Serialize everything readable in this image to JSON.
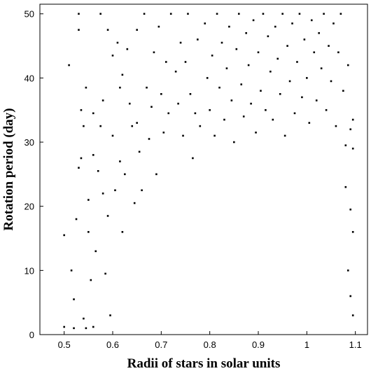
{
  "chart_data": {
    "type": "scatter",
    "xlabel": "Radii of stars in solar units",
    "ylabel": "Rotation period (day)",
    "xlim": [
      0.45,
      1.125
    ],
    "ylim": [
      0,
      51.5
    ],
    "xticks": [
      0.5,
      0.6,
      0.7,
      0.8,
      0.9,
      1,
      1.1
    ],
    "xtick_labels": [
      "0.5",
      "0.6",
      "0.7",
      "0.8",
      "0.9",
      "1",
      "1.1"
    ],
    "yticks": [
      0,
      10,
      20,
      30,
      40,
      50
    ],
    "ytick_labels": [
      "0",
      "10",
      "20",
      "30",
      "40",
      "50"
    ],
    "grid": false,
    "marker_color": "#000000",
    "series": [
      {
        "values": [
          [
            0.5,
            1.2
          ],
          [
            0.5,
            15.5
          ],
          [
            0.51,
            42.0
          ],
          [
            0.515,
            10.0
          ],
          [
            0.52,
            5.5
          ],
          [
            0.52,
            1.0
          ],
          [
            0.525,
            18.0
          ],
          [
            0.53,
            26.0
          ],
          [
            0.53,
            50.0
          ],
          [
            0.53,
            47.5
          ],
          [
            0.535,
            35.0
          ],
          [
            0.535,
            27.5
          ],
          [
            0.54,
            32.5
          ],
          [
            0.54,
            2.5
          ],
          [
            0.545,
            1.0
          ],
          [
            0.545,
            38.5
          ],
          [
            0.55,
            16.0
          ],
          [
            0.55,
            21.0
          ],
          [
            0.555,
            8.5
          ],
          [
            0.56,
            34.5
          ],
          [
            0.56,
            28.0
          ],
          [
            0.56,
            1.2
          ],
          [
            0.565,
            13.0
          ],
          [
            0.57,
            25.5
          ],
          [
            0.575,
            50.0
          ],
          [
            0.575,
            32.5
          ],
          [
            0.58,
            22.0
          ],
          [
            0.58,
            36.5
          ],
          [
            0.585,
            9.5
          ],
          [
            0.59,
            47.5
          ],
          [
            0.59,
            18.5
          ],
          [
            0.595,
            3.0
          ],
          [
            0.6,
            43.5
          ],
          [
            0.6,
            31.0
          ],
          [
            0.605,
            22.5
          ],
          [
            0.61,
            45.5
          ],
          [
            0.615,
            38.5
          ],
          [
            0.615,
            27.0
          ],
          [
            0.62,
            40.5
          ],
          [
            0.62,
            16.0
          ],
          [
            0.625,
            25.0
          ],
          [
            0.63,
            44.5
          ],
          [
            0.635,
            36.0
          ],
          [
            0.64,
            32.5
          ],
          [
            0.645,
            20.5
          ],
          [
            0.65,
            33.0
          ],
          [
            0.65,
            47.5
          ],
          [
            0.655,
            28.5
          ],
          [
            0.66,
            22.5
          ],
          [
            0.665,
            50.0
          ],
          [
            0.67,
            38.5
          ],
          [
            0.675,
            30.5
          ],
          [
            0.68,
            35.5
          ],
          [
            0.685,
            44.0
          ],
          [
            0.69,
            25.0
          ],
          [
            0.695,
            48.0
          ],
          [
            0.7,
            37.5
          ],
          [
            0.705,
            31.5
          ],
          [
            0.71,
            42.5
          ],
          [
            0.715,
            34.5
          ],
          [
            0.72,
            50.0
          ],
          [
            0.73,
            41.0
          ],
          [
            0.735,
            36.0
          ],
          [
            0.74,
            45.5
          ],
          [
            0.745,
            31.0
          ],
          [
            0.75,
            42.5
          ],
          [
            0.755,
            50.0
          ],
          [
            0.76,
            37.5
          ],
          [
            0.765,
            27.5
          ],
          [
            0.77,
            34.5
          ],
          [
            0.775,
            46.0
          ],
          [
            0.78,
            32.5
          ],
          [
            0.79,
            48.5
          ],
          [
            0.795,
            40.0
          ],
          [
            0.8,
            35.0
          ],
          [
            0.805,
            43.5
          ],
          [
            0.81,
            31.0
          ],
          [
            0.815,
            50.0
          ],
          [
            0.82,
            38.5
          ],
          [
            0.825,
            45.5
          ],
          [
            0.83,
            33.5
          ],
          [
            0.835,
            41.5
          ],
          [
            0.84,
            48.0
          ],
          [
            0.845,
            36.5
          ],
          [
            0.85,
            30.0
          ],
          [
            0.855,
            44.5
          ],
          [
            0.86,
            50.0
          ],
          [
            0.865,
            39.0
          ],
          [
            0.87,
            34.0
          ],
          [
            0.875,
            47.0
          ],
          [
            0.88,
            42.0
          ],
          [
            0.885,
            36.0
          ],
          [
            0.89,
            49.0
          ],
          [
            0.895,
            31.5
          ],
          [
            0.9,
            44.0
          ],
          [
            0.905,
            38.0
          ],
          [
            0.91,
            50.0
          ],
          [
            0.915,
            35.0
          ],
          [
            0.92,
            46.5
          ],
          [
            0.925,
            41.0
          ],
          [
            0.93,
            33.5
          ],
          [
            0.935,
            48.0
          ],
          [
            0.94,
            43.0
          ],
          [
            0.945,
            37.5
          ],
          [
            0.95,
            50.0
          ],
          [
            0.955,
            31.0
          ],
          [
            0.96,
            45.0
          ],
          [
            0.965,
            39.5
          ],
          [
            0.97,
            48.5
          ],
          [
            0.975,
            34.5
          ],
          [
            0.98,
            42.5
          ],
          [
            0.985,
            50.0
          ],
          [
            0.99,
            37.0
          ],
          [
            0.995,
            46.0
          ],
          [
            1.0,
            40.0
          ],
          [
            1.005,
            33.0
          ],
          [
            1.01,
            49.0
          ],
          [
            1.015,
            44.0
          ],
          [
            1.02,
            36.5
          ],
          [
            1.025,
            47.0
          ],
          [
            1.03,
            41.5
          ],
          [
            1.035,
            50.0
          ],
          [
            1.04,
            35.0
          ],
          [
            1.045,
            45.0
          ],
          [
            1.05,
            39.5
          ],
          [
            1.055,
            48.5
          ],
          [
            1.06,
            32.5
          ],
          [
            1.065,
            44.0
          ],
          [
            1.07,
            50.0
          ],
          [
            1.075,
            38.0
          ],
          [
            1.08,
            29.5
          ],
          [
            1.085,
            42.0
          ],
          [
            1.09,
            32.0
          ],
          [
            1.095,
            29.0
          ],
          [
            1.095,
            33.5
          ],
          [
            1.08,
            23.0
          ],
          [
            1.09,
            19.5
          ],
          [
            1.095,
            16.0
          ],
          [
            1.085,
            10.0
          ],
          [
            1.09,
            6.0
          ],
          [
            1.095,
            3.0
          ]
        ]
      }
    ]
  }
}
